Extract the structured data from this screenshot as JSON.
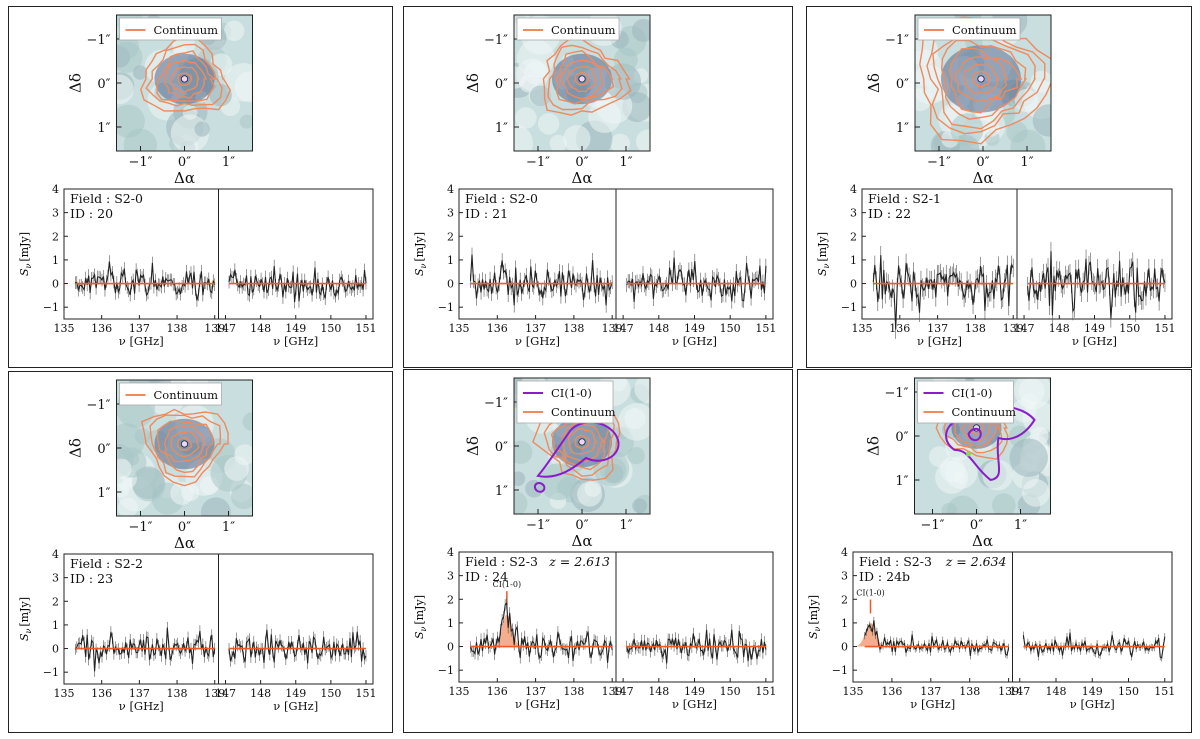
{
  "labels": {
    "dec_axis": "Δδ",
    "ra_axis": "Δα",
    "sky_ticks": [
      "−1″",
      "0″",
      "1″"
    ],
    "sv_axis": "S",
    "sv_sub": "ν",
    "sv_unit": "[mJy]",
    "freq_axis": "ν [GHz]",
    "legend_continuum": "Continuum",
    "legend_ci": "CI(1-0)",
    "line_marker": "CI(1-0)"
  },
  "colors": {
    "continuum": "#f08a5d",
    "ci": "#8a1ccc",
    "zero_line": "#ee5a24",
    "sky_bg": "#c9dede",
    "sky_dark": "#556a8e",
    "spectrum": "#222222"
  },
  "panels": [
    {
      "field": "Field : S2-0",
      "id": "ID : 20",
      "redshift": "",
      "has_ci": false,
      "line_ghz": null,
      "line_amp": 0,
      "noise": 0.45
    },
    {
      "field": "Field : S2-0",
      "id": "ID : 21",
      "redshift": "",
      "has_ci": false,
      "line_ghz": null,
      "line_amp": 0,
      "noise": 0.5
    },
    {
      "field": "Field : S2-1",
      "id": "ID : 22",
      "redshift": "",
      "has_ci": false,
      "line_ghz": null,
      "line_amp": 0,
      "noise": 0.65
    },
    {
      "field": "Field : S2-2",
      "id": "ID : 23",
      "redshift": "",
      "has_ci": false,
      "line_ghz": null,
      "line_amp": 0,
      "noise": 0.4
    },
    {
      "field": "Field : S2-3",
      "id": "ID : 24",
      "redshift": "z = 2.613",
      "has_ci": true,
      "line_ghz": 136.25,
      "line_amp": 1.35,
      "noise": 0.4
    },
    {
      "field": "Field : S2-3",
      "id": "ID : 24b",
      "redshift": "z = 2.634",
      "has_ci": true,
      "line_ghz": 135.45,
      "line_amp": 1.0,
      "noise": 0.25
    }
  ],
  "chart_data": {
    "type": "line",
    "description_axes": {
      "spectrum_y_range": [
        -1.5,
        4
      ],
      "spectrum_y_ticks": [
        -1,
        0,
        1,
        2,
        3,
        4
      ],
      "left_window_x_range": [
        135,
        139.1
      ],
      "left_window_ticks": [
        135,
        136,
        137,
        138,
        139
      ],
      "right_window_x_range": [
        146.8,
        151.2
      ],
      "right_window_ticks": [
        147,
        148,
        149,
        150,
        151
      ],
      "sky_ticks_arcsec": [
        -1,
        0,
        1
      ]
    }
  }
}
